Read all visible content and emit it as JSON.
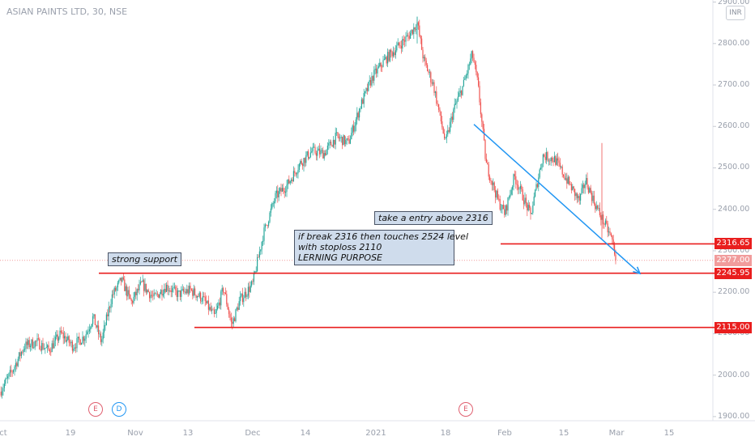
{
  "header": {
    "symbol": "ASIAN PAINTS LTD, 30, NSE",
    "currency": "INR"
  },
  "notes": {
    "strong_support": "strong support",
    "entry": "take a entry above 2316",
    "plan": [
      "if break 2316 then touches 2524 level",
      "with stoploss 2110",
      "LERNING PURPOSE"
    ]
  },
  "events": [
    {
      "letter": "E",
      "type": "earnings",
      "color": "#e06070",
      "date": "2020-10-28"
    },
    {
      "letter": "D",
      "type": "dividend",
      "color": "#2196f3",
      "date": "2020-11-03"
    },
    {
      "letter": "E",
      "type": "earnings",
      "color": "#e06070",
      "date": "2021-01-20"
    }
  ],
  "colors": {
    "up": "#26a69a",
    "down": "#ef5350",
    "level": "#e91e1e",
    "trend": "#2196f3"
  },
  "chart_data": {
    "type": "candlestick",
    "symbol": "ASIAN PAINTS LTD",
    "interval": "30",
    "exchange": "NSE",
    "x_tick_labels": [
      "Oct",
      "19",
      "Nov",
      "13",
      "Dec",
      "14",
      "2021",
      "18",
      "Feb",
      "15",
      "Mar",
      "15"
    ],
    "x_ticks": [
      0,
      8.7,
      16.7,
      23.2,
      31.2,
      37.7,
      46.4,
      55,
      62.3,
      69.6,
      76.1,
      82.6
    ],
    "y_tick_labels": [
      "1900.00",
      "2000.00",
      "2100.00",
      "2200.00",
      "2300.00",
      "2400.00",
      "2500.00",
      "2600.00",
      "2700.00",
      "2800.00",
      "2900.00"
    ],
    "ylim": [
      1890,
      2905
    ],
    "xlim": [
      0,
      88
    ],
    "price_path": [
      [
        0,
        1960
      ],
      [
        1.5,
        2010
      ],
      [
        3,
        2070
      ],
      [
        4.5,
        2080
      ],
      [
        6,
        2060
      ],
      [
        7.5,
        2100
      ],
      [
        9,
        2070
      ],
      [
        10.5,
        2095
      ],
      [
        11.5,
        2140
      ],
      [
        12.5,
        2080
      ],
      [
        13.8,
        2190
      ],
      [
        15,
        2230
      ],
      [
        16.2,
        2175
      ],
      [
        17.5,
        2220
      ],
      [
        19,
        2185
      ],
      [
        20.5,
        2215
      ],
      [
        22,
        2195
      ],
      [
        23.5,
        2205
      ],
      [
        25,
        2185
      ],
      [
        26.5,
        2140
      ],
      [
        27.6,
        2210
      ],
      [
        28.6,
        2120
      ],
      [
        29.6,
        2180
      ],
      [
        31.2,
        2220
      ],
      [
        32.5,
        2340
      ],
      [
        34,
        2430
      ],
      [
        35.5,
        2460
      ],
      [
        37,
        2510
      ],
      [
        38.5,
        2540
      ],
      [
        40,
        2535
      ],
      [
        41.5,
        2575
      ],
      [
        43,
        2560
      ],
      [
        44.5,
        2650
      ],
      [
        46,
        2720
      ],
      [
        47.5,
        2760
      ],
      [
        49,
        2790
      ],
      [
        50.5,
        2820
      ],
      [
        51.5,
        2850
      ],
      [
        52.3,
        2760
      ],
      [
        53.5,
        2700
      ],
      [
        55,
        2560
      ],
      [
        56,
        2640
      ],
      [
        57.2,
        2700
      ],
      [
        58.3,
        2775
      ],
      [
        59,
        2700
      ],
      [
        60,
        2510
      ],
      [
        61.5,
        2420
      ],
      [
        62.3,
        2390
      ],
      [
        63.5,
        2480
      ],
      [
        65.5,
        2385
      ],
      [
        67,
        2530
      ],
      [
        68.5,
        2520
      ],
      [
        70,
        2470
      ],
      [
        71.5,
        2420
      ],
      [
        72.3,
        2470
      ],
      [
        73.5,
        2410
      ],
      [
        74.5,
        2370
      ],
      [
        75.5,
        2330
      ],
      [
        76.1,
        2277
      ]
    ],
    "last_price": 2277.0,
    "horizontal_levels": [
      2316.65,
      2245.95,
      2115.0
    ],
    "level_spans": [
      [
        61.8,
        88
      ],
      [
        12.2,
        88
      ],
      [
        24,
        88
      ]
    ],
    "trendline": {
      "from": [
        58.5,
        2605
      ],
      "to": [
        79,
        2245
      ]
    },
    "annotations": [
      {
        "text": "strong support",
        "x": 12.3,
        "y": 2260
      },
      {
        "text": "take a entry above 2316",
        "x": 42,
        "y": 2385
      },
      {
        "text": "if break 2316 then touches 2524 level / with stoploss 2110 / LERNING PURPOSE",
        "x": 33.3,
        "y": 2345
      }
    ]
  }
}
